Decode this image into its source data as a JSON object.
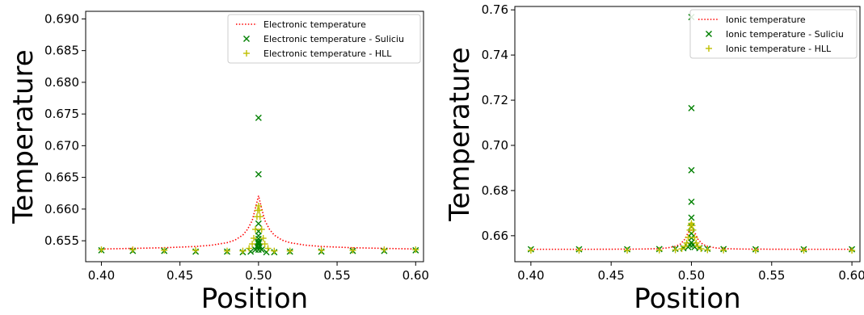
{
  "chart_data": [
    {
      "type": "line",
      "xlabel": "Position",
      "ylabel": "Temperature",
      "xlim": [
        0.39,
        0.605
      ],
      "ylim": [
        0.6517,
        0.6912
      ],
      "xticks": [
        0.4,
        0.45,
        0.5,
        0.55,
        0.6
      ],
      "xtick_labels": [
        "0.40",
        "0.45",
        "0.50",
        "0.55",
        "0.60"
      ],
      "yticks": [
        0.655,
        0.66,
        0.665,
        0.67,
        0.675,
        0.68,
        0.685,
        0.69
      ],
      "ytick_labels": [
        "0.655",
        "0.660",
        "0.665",
        "0.670",
        "0.675",
        "0.680",
        "0.685",
        "0.690"
      ],
      "legend_position": "top-right",
      "series": [
        {
          "name": "Electronic temperature",
          "style": "dotted-line",
          "color": "#ff0000",
          "x": [
            0.4,
            0.42,
            0.44,
            0.46,
            0.47,
            0.48,
            0.485,
            0.49,
            0.493,
            0.496,
            0.498,
            0.5,
            0.502,
            0.504,
            0.507,
            0.51,
            0.515,
            0.52,
            0.53,
            0.54,
            0.56,
            0.58,
            0.6
          ],
          "y": [
            0.6537,
            0.6538,
            0.6539,
            0.6541,
            0.6543,
            0.6547,
            0.6551,
            0.6559,
            0.6568,
            0.6582,
            0.6601,
            0.6621,
            0.6601,
            0.6582,
            0.6568,
            0.6559,
            0.6551,
            0.6547,
            0.6543,
            0.6541,
            0.6539,
            0.6538,
            0.6537
          ]
        },
        {
          "name": "Electronic temperature - Suliciu",
          "style": "x-marker",
          "color": "#008000",
          "x": [
            0.4,
            0.42,
            0.44,
            0.46,
            0.48,
            0.49,
            0.495,
            0.498,
            0.499,
            0.4995,
            0.5,
            0.5005,
            0.501,
            0.502,
            0.505,
            0.51,
            0.52,
            0.54,
            0.56,
            0.58,
            0.6,
            0.5,
            0.5,
            0.5,
            0.5,
            0.5,
            0.5,
            0.5,
            0.5
          ],
          "y": [
            0.6535,
            0.6534,
            0.6534,
            0.6533,
            0.6533,
            0.6532,
            0.6533,
            0.6536,
            0.6541,
            0.6548,
            0.6553,
            0.6548,
            0.6541,
            0.6536,
            0.6532,
            0.6532,
            0.6533,
            0.6533,
            0.6534,
            0.6534,
            0.6535,
            0.6744,
            0.6655,
            0.6577,
            0.6558,
            0.6565,
            0.6545,
            0.654,
            0.6536
          ]
        },
        {
          "name": "Electronic temperature - HLL",
          "style": "plus-marker",
          "color": "#bfbf00",
          "x": [
            0.4,
            0.42,
            0.44,
            0.46,
            0.48,
            0.49,
            0.494,
            0.496,
            0.497,
            0.498,
            0.499,
            0.4995,
            0.5,
            0.5005,
            0.501,
            0.502,
            0.503,
            0.504,
            0.506,
            0.51,
            0.52,
            0.54,
            0.56,
            0.58,
            0.6
          ],
          "y": [
            0.6536,
            0.6536,
            0.6535,
            0.6535,
            0.6534,
            0.6534,
            0.6538,
            0.6545,
            0.6554,
            0.6568,
            0.6588,
            0.6598,
            0.6605,
            0.6598,
            0.6588,
            0.6568,
            0.6554,
            0.6545,
            0.6538,
            0.6534,
            0.6534,
            0.6535,
            0.6535,
            0.6536,
            0.6536
          ]
        }
      ]
    },
    {
      "type": "line",
      "xlabel": "Position",
      "ylabel": "Temperature",
      "xlim": [
        0.39,
        0.605
      ],
      "ylim": [
        0.6485,
        0.7615
      ],
      "xticks": [
        0.4,
        0.45,
        0.5,
        0.55,
        0.6
      ],
      "xtick_labels": [
        "0.40",
        "0.45",
        "0.50",
        "0.55",
        "0.60"
      ],
      "yticks": [
        0.66,
        0.68,
        0.7,
        0.72,
        0.74,
        0.76
      ],
      "ytick_labels": [
        "0.66",
        "0.68",
        "0.70",
        "0.72",
        "0.74",
        "0.76"
      ],
      "legend_position": "top-right",
      "series": [
        {
          "name": "Ionic temperature",
          "style": "dotted-line",
          "color": "#ff0000",
          "x": [
            0.4,
            0.44,
            0.47,
            0.48,
            0.485,
            0.49,
            0.493,
            0.496,
            0.498,
            0.5,
            0.502,
            0.504,
            0.507,
            0.51,
            0.515,
            0.52,
            0.53,
            0.56,
            0.6
          ],
          "y": [
            0.654,
            0.654,
            0.6541,
            0.6543,
            0.6546,
            0.6553,
            0.6562,
            0.6585,
            0.6615,
            0.6625,
            0.6615,
            0.6585,
            0.6562,
            0.6553,
            0.6546,
            0.6543,
            0.6541,
            0.654,
            0.654
          ]
        },
        {
          "name": "Ionic temperature - Suliciu",
          "style": "x-marker",
          "color": "#008000",
          "x": [
            0.4,
            0.43,
            0.46,
            0.48,
            0.49,
            0.495,
            0.498,
            0.499,
            0.5,
            0.501,
            0.502,
            0.505,
            0.51,
            0.52,
            0.54,
            0.57,
            0.6,
            0.5,
            0.5,
            0.5,
            0.5,
            0.5,
            0.5,
            0.5,
            0.5
          ],
          "y": [
            0.654,
            0.654,
            0.654,
            0.6541,
            0.6542,
            0.6545,
            0.655,
            0.656,
            0.657,
            0.656,
            0.655,
            0.6545,
            0.6542,
            0.6541,
            0.654,
            0.654,
            0.654,
            0.7568,
            0.7165,
            0.689,
            0.675,
            0.668,
            0.664,
            0.661,
            0.659
          ]
        },
        {
          "name": "Ionic temperature - HLL",
          "style": "plus-marker",
          "color": "#bfbf00",
          "x": [
            0.4,
            0.43,
            0.46,
            0.48,
            0.49,
            0.494,
            0.496,
            0.497,
            0.498,
            0.499,
            0.4995,
            0.5,
            0.5005,
            0.501,
            0.502,
            0.503,
            0.504,
            0.506,
            0.51,
            0.52,
            0.54,
            0.57,
            0.6
          ],
          "y": [
            0.6535,
            0.6535,
            0.6535,
            0.6536,
            0.6537,
            0.6542,
            0.6553,
            0.6568,
            0.6592,
            0.6625,
            0.6645,
            0.6655,
            0.6645,
            0.6625,
            0.6592,
            0.6568,
            0.6553,
            0.6542,
            0.6537,
            0.6536,
            0.6535,
            0.6535,
            0.6535
          ]
        }
      ]
    }
  ]
}
